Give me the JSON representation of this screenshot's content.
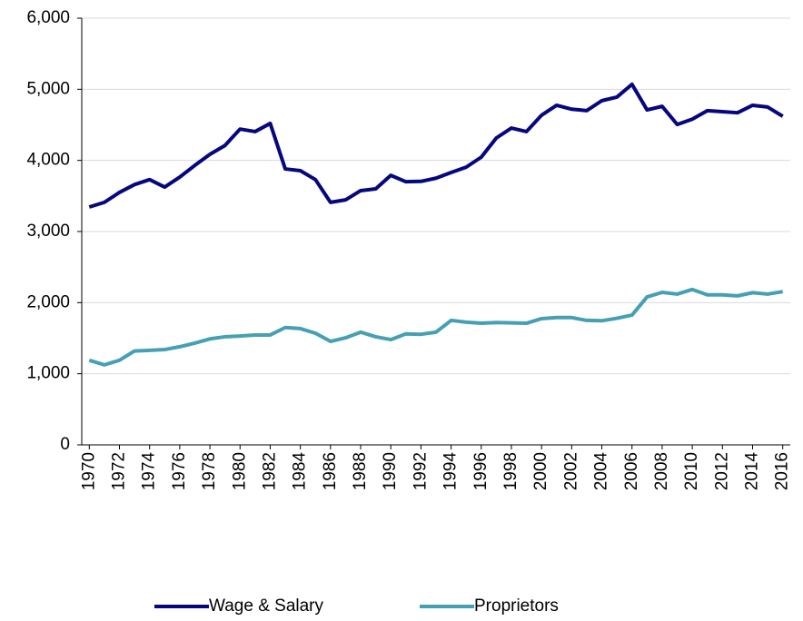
{
  "chart_data": {
    "type": "line",
    "x": [
      1970,
      1971,
      1972,
      1973,
      1974,
      1975,
      1976,
      1977,
      1978,
      1979,
      1980,
      1981,
      1982,
      1983,
      1984,
      1985,
      1986,
      1987,
      1988,
      1989,
      1990,
      1991,
      1992,
      1993,
      1994,
      1995,
      1996,
      1997,
      1998,
      1999,
      2000,
      2001,
      2002,
      2003,
      2004,
      2005,
      2006,
      2007,
      2008,
      2009,
      2010,
      2011,
      2012,
      2013,
      2014,
      2015,
      2016
    ],
    "series": [
      {
        "name": "Wage & Salary",
        "color": "#06067e",
        "values": [
          3345,
          3410,
          3550,
          3660,
          3730,
          3625,
          3765,
          3930,
          4085,
          4210,
          4440,
          4405,
          4520,
          3880,
          3855,
          3730,
          3410,
          3445,
          3575,
          3600,
          3790,
          3700,
          3705,
          3750,
          3830,
          3905,
          4045,
          4315,
          4455,
          4405,
          4635,
          4775,
          4720,
          4700,
          4840,
          4890,
          5070,
          4710,
          4760,
          4505,
          4580,
          4700,
          4685,
          4670,
          4775,
          4750,
          4620
        ]
      },
      {
        "name": "Proprietors",
        "color": "#46a0b5",
        "values": [
          1190,
          1125,
          1190,
          1320,
          1330,
          1340,
          1380,
          1430,
          1490,
          1520,
          1530,
          1545,
          1545,
          1650,
          1635,
          1570,
          1455,
          1505,
          1585,
          1520,
          1480,
          1560,
          1555,
          1585,
          1750,
          1725,
          1710,
          1720,
          1715,
          1710,
          1775,
          1790,
          1790,
          1750,
          1745,
          1780,
          1825,
          2080,
          2145,
          2120,
          2185,
          2110,
          2110,
          2095,
          2140,
          2120,
          2155
        ]
      }
    ],
    "xlim": [
      1969.5,
      2016.5
    ],
    "xticks": [
      1970,
      1972,
      1974,
      1976,
      1978,
      1980,
      1982,
      1984,
      1986,
      1988,
      1990,
      1992,
      1994,
      1996,
      1998,
      2000,
      2002,
      2004,
      2006,
      2008,
      2010,
      2012,
      2014,
      2016
    ],
    "ylim": [
      0,
      6000
    ],
    "yticks": [
      0,
      {
        "value": 1000,
        "label": "1,000"
      },
      {
        "value": 2000,
        "label": "2,000"
      },
      {
        "value": 3000,
        "label": "3,000"
      },
      {
        "value": 4000,
        "label": "4,000"
      },
      {
        "value": 5000,
        "label": "5,000"
      },
      {
        "value": 6000,
        "label": "6,000"
      }
    ],
    "grid": true,
    "legend": "bottom"
  }
}
